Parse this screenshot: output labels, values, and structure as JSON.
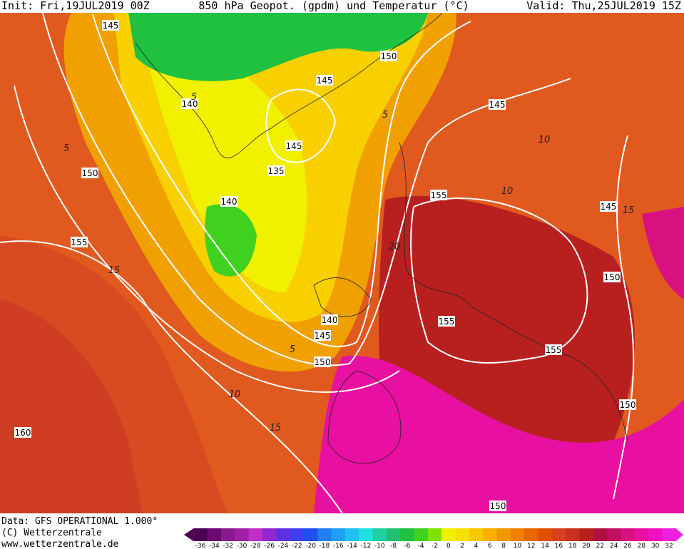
{
  "header": {
    "init": "Init: Fri,19JUL2019 00Z",
    "title": "850 hPa Geopot. (gpdm) und Temperatur (°C)",
    "valid": "Valid: Thu,25JUL2019 15Z"
  },
  "geopotential_labels": [
    145,
    150,
    145,
    140,
    145,
    145,
    135,
    150,
    155,
    140,
    145,
    155,
    150,
    140,
    155,
    145,
    155,
    150,
    150,
    160,
    150
  ],
  "temperature_labels": [
    5,
    10,
    10,
    5,
    15,
    20,
    5,
    10,
    15,
    15,
    5
  ],
  "legend": {
    "ticks": [
      -36,
      -34,
      -32,
      -30,
      -28,
      -26,
      -24,
      -22,
      -20,
      -18,
      -16,
      -14,
      -12,
      -10,
      -8,
      -6,
      -4,
      -2,
      0,
      2,
      4,
      6,
      8,
      10,
      12,
      14,
      16,
      18,
      20,
      22,
      24,
      26,
      28,
      30,
      32
    ],
    "colors": [
      "#4b0050",
      "#6a0a70",
      "#8a1a90",
      "#a020a8",
      "#c030c8",
      "#9028d0",
      "#6030e0",
      "#4040f0",
      "#2050f0",
      "#2080f0",
      "#20a0f0",
      "#20c0f0",
      "#20e0e0",
      "#20d0a0",
      "#20c070",
      "#20c040",
      "#40d020",
      "#80e000",
      "#f0f000",
      "#f8e000",
      "#f8c800",
      "#f8b000",
      "#f09800",
      "#f08000",
      "#e86800",
      "#e05000",
      "#d84020",
      "#c83020",
      "#b82020",
      "#b01040",
      "#c01060",
      "#d81080",
      "#e810a0",
      "#f010c0",
      "#f020e0"
    ]
  },
  "footer": {
    "data": "Data: GFS OPERATIONAL 1.000°",
    "copyright": "(C) Wetterzentrale",
    "url": "www.wetterzentrale.de"
  }
}
